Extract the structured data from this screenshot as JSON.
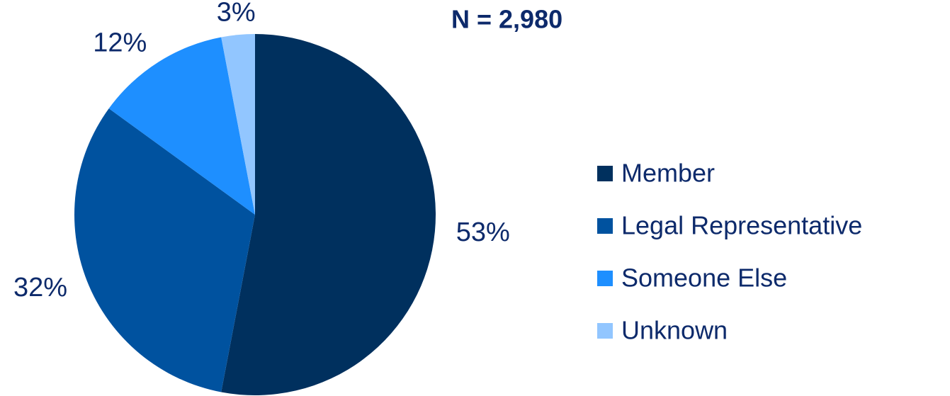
{
  "chart_data": {
    "type": "pie",
    "annotation": "N = 2,980",
    "categories": [
      "Member",
      "Legal Representative",
      "Someone Else",
      "Unknown"
    ],
    "values": [
      53,
      32,
      12,
      3
    ],
    "value_labels": [
      "53%",
      "32%",
      "12%",
      "3%"
    ],
    "colors": [
      "#00305e",
      "#00529f",
      "#1e8fff",
      "#92c6ff"
    ],
    "legend": "right"
  }
}
